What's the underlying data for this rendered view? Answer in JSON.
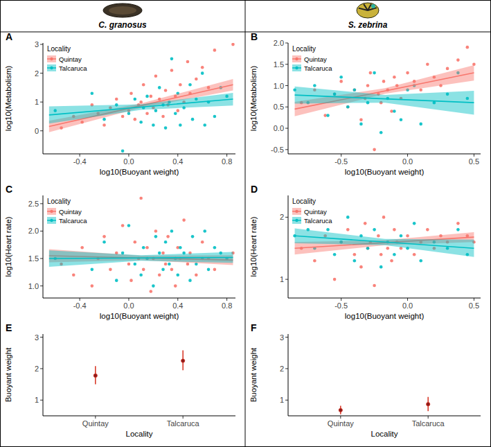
{
  "header": {
    "species": [
      "C. granosus",
      "S. zebrina"
    ]
  },
  "chart_data": [
    {
      "type": "scatter",
      "label": "A",
      "xlabel": "log10(Buoyant weight)",
      "ylabel": "log10(Metabolism)",
      "legend_title": "Locality",
      "legend": "top-left",
      "grid": false,
      "xlim": [
        -0.7,
        0.87
      ],
      "xticks": [
        -0.4,
        {
          "value": 0,
          "label": "0.0"
        },
        0.4,
        0.8
      ],
      "ylim": [
        -0.8,
        3.05
      ],
      "yticks": [
        0,
        1,
        2,
        3
      ],
      "series": [
        {
          "name": "Quintay",
          "color": "#F8766D",
          "x": [
            -0.55,
            -0.45,
            -0.38,
            -0.3,
            -0.25,
            -0.2,
            -0.15,
            -0.1,
            -0.05,
            0.0,
            0.02,
            0.05,
            0.08,
            0.1,
            0.12,
            0.15,
            0.18,
            0.2,
            0.22,
            0.25,
            0.28,
            0.3,
            0.32,
            0.35,
            0.38,
            0.4,
            0.42,
            0.45,
            0.48,
            0.5,
            0.55,
            0.6,
            0.65,
            0.7,
            0.85
          ],
          "values": [
            0.1,
            0.5,
            0.3,
            0.9,
            0.6,
            0.2,
            0.8,
            1.1,
            0.5,
            0.7,
            1.3,
            0.4,
            0.9,
            1.0,
            1.6,
            0.6,
            1.2,
            0.8,
            1.9,
            1.1,
            0.5,
            1.4,
            0.9,
            2.1,
            1.2,
            0.7,
            1.6,
            1.0,
            2.4,
            1.3,
            1.8,
            2.2,
            1.5,
            2.8,
            3.0
          ],
          "fit": {
            "x": [
              -0.65,
              0.1,
              0.85
            ],
            "values": [
              0.15,
              0.875,
              1.6
            ],
            "lower": [
              -0.05,
              0.8,
              1.4
            ],
            "upper": [
              0.35,
              0.95,
              1.8
            ]
          }
        },
        {
          "name": "Talcaruca",
          "color": "#00BFC4",
          "x": [
            -0.6,
            -0.3,
            -0.2,
            -0.1,
            -0.05,
            0.0,
            0.05,
            0.1,
            0.12,
            0.15,
            0.2,
            0.22,
            0.25,
            0.28,
            0.3,
            0.33,
            0.35,
            0.38,
            0.4,
            0.42,
            0.45,
            0.5,
            0.52,
            0.55,
            0.6,
            0.62,
            0.65,
            0.7,
            0.75,
            0.8
          ],
          "values": [
            0.7,
            1.3,
            0.4,
            0.9,
            -0.7,
            0.6,
            1.1,
            0.3,
            0.8,
            1.2,
            0.2,
            0.7,
            1.5,
            0.9,
            0.1,
            1.0,
            2.5,
            0.6,
            1.3,
            0.2,
            0.8,
            1.6,
            0.4,
            1.1,
            2.0,
            0.2,
            1.0,
            0.5,
            1.5,
            1.2
          ],
          "fit": {
            "x": [
              -0.65,
              0.1,
              0.85
            ],
            "values": [
              0.55,
              0.825,
              1.1
            ],
            "lower": [
              0.25,
              0.73,
              0.88
            ],
            "upper": [
              0.85,
              0.92,
              1.32
            ]
          }
        }
      ]
    },
    {
      "type": "scatter",
      "label": "B",
      "xlabel": "log10(Buoyant weight)",
      "ylabel": "log10(Metabolism)",
      "legend_title": "Locality",
      "legend": "top-left",
      "grid": false,
      "xlim": [
        -0.9,
        0.55
      ],
      "xticks": [
        -0.5,
        {
          "value": 0,
          "label": "0.0"
        },
        0.5
      ],
      "ylim": [
        -0.6,
        2.0
      ],
      "yticks": [
        -0.5,
        {
          "value": 0,
          "label": "0.0"
        },
        0.5,
        {
          "value": 1,
          "label": "1.0"
        },
        1.5,
        {
          "value": 2,
          "label": "2.0"
        }
      ],
      "series": [
        {
          "name": "Quintay",
          "color": "#F8766D",
          "x": [
            -0.8,
            -0.7,
            -0.62,
            -0.55,
            -0.5,
            -0.45,
            -0.4,
            -0.35,
            -0.32,
            -0.3,
            -0.28,
            -0.25,
            -0.22,
            -0.2,
            -0.18,
            -0.15,
            -0.12,
            -0.1,
            -0.08,
            -0.05,
            0.0,
            0.05,
            0.1,
            0.15,
            0.2,
            0.25,
            0.3,
            0.38,
            0.45,
            0.5
          ],
          "values": [
            0.6,
            0.9,
            0.3,
            0.8,
            1.1,
            0.5,
            0.9,
            0.2,
            0.7,
            1.0,
            1.3,
            -0.5,
            0.8,
            0.6,
            1.1,
            0.9,
            0.4,
            1.2,
            1.0,
            0.7,
            1.3,
            1.1,
            0.9,
            1.5,
            1.2,
            1.0,
            1.4,
            1.6,
            1.9,
            1.5
          ],
          "fit": {
            "x": [
              -0.85,
              -0.17,
              0.5
            ],
            "values": [
              0.45,
              0.875,
              1.3
            ],
            "lower": [
              0.28,
              0.81,
              1.12
            ],
            "upper": [
              0.62,
              0.94,
              1.48
            ]
          }
        },
        {
          "name": "Talcaruca",
          "color": "#00BFC4",
          "x": [
            -0.85,
            -0.75,
            -0.7,
            -0.6,
            -0.55,
            -0.5,
            -0.45,
            -0.4,
            -0.35,
            -0.3,
            -0.25,
            -0.2,
            -0.15,
            -0.1,
            -0.05,
            0.0,
            0.05,
            0.1,
            0.2,
            0.3,
            0.38,
            0.45
          ],
          "values": [
            0.9,
            0.6,
            1.0,
            0.3,
            0.8,
            1.2,
            0.5,
            0.9,
            0.1,
            0.6,
            1.3,
            -0.1,
            0.7,
            0.4,
            0.2,
            0.9,
            1.0,
            0.1,
            0.6,
            0.8,
            1.3,
            0.7
          ],
          "fit": {
            "x": [
              -0.85,
              -0.17,
              0.5
            ],
            "values": [
              0.78,
              0.69,
              0.6
            ],
            "lower": [
              0.58,
              0.6,
              0.32
            ],
            "upper": [
              0.98,
              0.78,
              0.88
            ]
          }
        }
      ]
    },
    {
      "type": "scatter",
      "label": "C",
      "xlabel": "log10(Buoyant weight)",
      "ylabel": "log10(Heart rate)",
      "legend_title": "Locality",
      "legend": "top-left",
      "grid": false,
      "xlim": [
        -0.7,
        0.87
      ],
      "xticks": [
        -0.4,
        {
          "value": 0,
          "label": "0.0"
        },
        0.4,
        0.8
      ],
      "ylim": [
        0.78,
        2.65
      ],
      "yticks": [
        {
          "value": 1,
          "label": "1.0"
        },
        1.5,
        {
          "value": 2,
          "label": "2.0"
        },
        2.5
      ],
      "series": [
        {
          "name": "Quintay",
          "color": "#F8766D",
          "x": [
            -0.55,
            -0.45,
            -0.38,
            -0.3,
            -0.25,
            -0.2,
            -0.15,
            -0.1,
            -0.05,
            0.0,
            0.02,
            0.05,
            0.08,
            0.1,
            0.12,
            0.15,
            0.18,
            0.2,
            0.22,
            0.25,
            0.28,
            0.3,
            0.32,
            0.35,
            0.38,
            0.4,
            0.42,
            0.45,
            0.48,
            0.5,
            0.55,
            0.6,
            0.65,
            0.7,
            0.85
          ],
          "values": [
            1.4,
            1.2,
            1.7,
            1.0,
            1.5,
            1.9,
            1.3,
            1.6,
            2.1,
            1.4,
            1.1,
            1.8,
            1.5,
            2.6,
            1.3,
            1.7,
            0.9,
            1.5,
            2.0,
            1.2,
            1.6,
            1.4,
            1.9,
            1.3,
            1.0,
            1.7,
            1.5,
            2.2,
            1.4,
            1.6,
            1.2,
            1.8,
            1.5,
            1.3,
            1.6
          ],
          "fit": {
            "x": [
              -0.65,
              0.1,
              0.85
            ],
            "values": [
              1.55,
              1.51,
              1.47
            ],
            "lower": [
              1.43,
              1.47,
              1.38
            ],
            "upper": [
              1.67,
              1.55,
              1.56
            ]
          }
        },
        {
          "name": "Talcaruca",
          "color": "#00BFC4",
          "x": [
            -0.6,
            -0.3,
            -0.2,
            -0.1,
            -0.05,
            0.0,
            0.05,
            0.1,
            0.12,
            0.15,
            0.2,
            0.22,
            0.25,
            0.28,
            0.3,
            0.33,
            0.35,
            0.38,
            0.4,
            0.42,
            0.45,
            0.5,
            0.52,
            0.55,
            0.6,
            0.62,
            0.65,
            0.7,
            0.75,
            0.8
          ],
          "values": [
            1.5,
            1.3,
            1.8,
            1.1,
            1.6,
            2.1,
            1.4,
            1.2,
            1.7,
            1.5,
            1.0,
            1.9,
            1.6,
            1.3,
            1.8,
            1.4,
            2.0,
            1.5,
            1.2,
            1.7,
            1.6,
            1.1,
            1.9,
            1.4,
            1.5,
            2.0,
            1.3,
            1.7,
            1.6,
            1.5
          ],
          "fit": {
            "x": [
              -0.65,
              0.1,
              0.85
            ],
            "values": [
              1.5,
              1.51,
              1.52
            ],
            "lower": [
              1.35,
              1.46,
              1.42
            ],
            "upper": [
              1.65,
              1.56,
              1.62
            ]
          }
        }
      ]
    },
    {
      "type": "scatter",
      "label": "D",
      "xlabel": "log10(Buoyant weight)",
      "ylabel": "log10(Heart rate)",
      "legend_title": "Locality",
      "legend": "top-left",
      "grid": false,
      "xlim": [
        -0.9,
        0.55
      ],
      "xticks": [
        -0.5,
        {
          "value": 0,
          "label": "0.0"
        },
        0.5
      ],
      "ylim": [
        0.7,
        2.35
      ],
      "yticks": [
        1,
        2
      ],
      "series": [
        {
          "name": "Quintay",
          "color": "#F8766D",
          "x": [
            -0.8,
            -0.7,
            -0.62,
            -0.55,
            -0.5,
            -0.45,
            -0.4,
            -0.35,
            -0.32,
            -0.3,
            -0.28,
            -0.25,
            -0.22,
            -0.2,
            -0.18,
            -0.15,
            -0.12,
            -0.1,
            -0.08,
            -0.05,
            0.0,
            0.05,
            0.1,
            0.15,
            0.2,
            0.25,
            0.3,
            0.38,
            0.45,
            0.5
          ],
          "values": [
            1.5,
            1.3,
            1.7,
            1.0,
            1.6,
            1.8,
            1.4,
            1.2,
            1.9,
            1.5,
            1.6,
            0.9,
            1.7,
            1.4,
            2.0,
            1.5,
            1.3,
            1.8,
            1.6,
            1.5,
            1.7,
            1.4,
            1.6,
            1.8,
            1.5,
            1.7,
            1.6,
            1.9,
            1.7,
            1.6
          ],
          "fit": {
            "x": [
              -0.85,
              -0.17,
              0.5
            ],
            "values": [
              1.5,
              1.59,
              1.68
            ],
            "lower": [
              1.4,
              1.55,
              1.6
            ],
            "upper": [
              1.6,
              1.63,
              1.76
            ]
          }
        },
        {
          "name": "Talcaruca",
          "color": "#00BFC4",
          "x": [
            -0.85,
            -0.75,
            -0.7,
            -0.6,
            -0.55,
            -0.5,
            -0.45,
            -0.4,
            -0.35,
            -0.3,
            -0.25,
            -0.2,
            -0.15,
            -0.1,
            -0.05,
            0.0,
            0.05,
            0.1,
            0.2,
            0.3,
            0.38,
            0.45
          ],
          "values": [
            1.7,
            1.8,
            1.5,
            1.8,
            1.4,
            1.6,
            2.0,
            1.3,
            1.7,
            1.5,
            1.8,
            1.2,
            1.6,
            1.4,
            1.7,
            1.5,
            1.9,
            1.3,
            1.6,
            1.5,
            1.8,
            1.4
          ],
          "fit": {
            "x": [
              -0.85,
              -0.17,
              0.5
            ],
            "values": [
              1.7,
              1.6,
              1.5
            ],
            "lower": [
              1.58,
              1.55,
              1.36
            ],
            "upper": [
              1.82,
              1.65,
              1.64
            ]
          }
        }
      ]
    },
    {
      "type": "point_range",
      "label": "E",
      "xlabel": "Locality",
      "ylabel": "Buoyant weight",
      "grid": false,
      "categories": [
        "Quintay",
        "Talcaruca"
      ],
      "ylim": [
        0.5,
        3.1
      ],
      "yticks": [
        1,
        2,
        3
      ],
      "series": [
        {
          "color": "#D7301F",
          "values": [
            1.78,
            2.25
          ],
          "lower": [
            1.5,
            1.95
          ],
          "upper": [
            2.08,
            2.58
          ]
        }
      ]
    },
    {
      "type": "point_range",
      "label": "F",
      "xlabel": "Locality",
      "ylabel": "Buoyant weight",
      "grid": false,
      "categories": [
        "Quintay",
        "Talcaruca"
      ],
      "ylim": [
        0.5,
        3.1
      ],
      "yticks": [
        1,
        2,
        3
      ],
      "series": [
        {
          "color": "#D7301F",
          "values": [
            0.68,
            0.87
          ],
          "lower": [
            0.55,
            0.65
          ],
          "upper": [
            0.82,
            1.1
          ]
        }
      ]
    }
  ]
}
